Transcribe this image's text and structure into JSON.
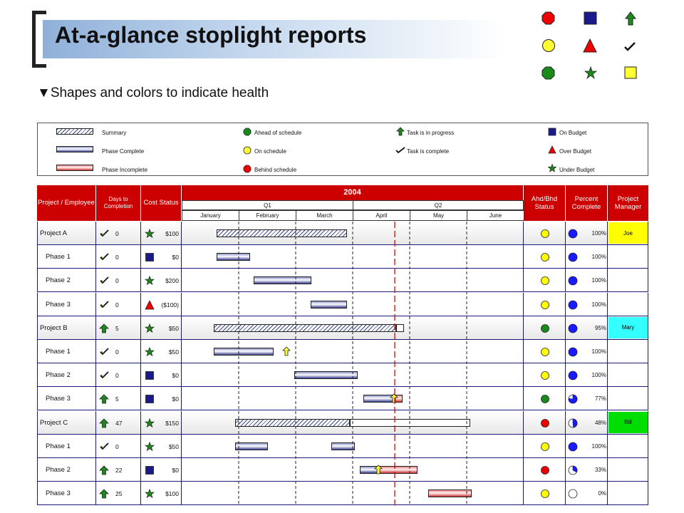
{
  "slide": {
    "title": "At-a-glance stoplight reports",
    "bullet": "Shapes and colors to indicate health",
    "bullet_marker": "▼"
  },
  "shape_grid": [
    [
      "red-octagon",
      "blue-square",
      "green-up-arrow"
    ],
    [
      "yellow-circle",
      "red-triangle",
      "black-checkmark"
    ],
    [
      "green-octagon",
      "green-star",
      "yellow-square"
    ]
  ],
  "legend": {
    "summary": "Summary",
    "phase_complete": "Phase Complete",
    "phase_incomplete": "Phase Incomplete",
    "ahead": "Ahead of schedule",
    "on_schedule": "On schedule",
    "behind": "Behind schedule",
    "task_in_progress": "Task is in progress",
    "task_complete": "Task is complete",
    "on_budget": "On Budget",
    "over_budget": "Over Budget",
    "under_budget": "Under Budget"
  },
  "headers": {
    "project": "Project / Employee",
    "days": "Days to Completion",
    "cost": "Cost Status",
    "year": "2004",
    "q1": "Q1",
    "q2": "Q2",
    "months": [
      "January",
      "February",
      "March",
      "April",
      "May",
      "June"
    ],
    "ahd": "Ahd/Bhd Status",
    "percent": "Percent Complete",
    "manager": "Project Manager"
  },
  "rows": [
    {
      "name": "Project A",
      "summary": true,
      "task_icon": "check",
      "days": "0",
      "cost_icon": "star",
      "cost": "$100",
      "status": "yellow",
      "percent": "100%",
      "pie": 1.0,
      "manager": "Joe",
      "mgr_color": "#ffff00",
      "bars": [
        {
          "type": "summary",
          "start": 0.0,
          "end": 0.425
        }
      ]
    },
    {
      "name": "Phase 1",
      "task_icon": "check",
      "days": "0",
      "cost_icon": "square",
      "cost": "$0",
      "status": "yellow",
      "percent": "100%",
      "pie": 1.0,
      "bars": [
        {
          "type": "complete",
          "start": 0.0,
          "end": 0.108
        }
      ]
    },
    {
      "name": "Phase 2",
      "task_icon": "check",
      "days": "0",
      "cost_icon": "star",
      "cost": "$200",
      "status": "yellow",
      "percent": "100%",
      "pie": 1.0,
      "bars": [
        {
          "type": "complete",
          "start": 0.12,
          "end": 0.308
        }
      ]
    },
    {
      "name": "Phase 3",
      "task_icon": "check",
      "days": "0",
      "cost_icon": "triangle",
      "cost": "($100)",
      "status": "yellow",
      "percent": "100%",
      "pie": 1.0,
      "bars": [
        {
          "type": "complete",
          "start": 0.307,
          "end": 0.425
        }
      ]
    },
    {
      "name": "Project B",
      "summary": true,
      "task_icon": "arrow",
      "days": "5",
      "cost_icon": "star",
      "cost": "$50",
      "status": "green",
      "percent": "95%",
      "pie": 1.0,
      "manager": "Mary",
      "mgr_color": "#33ffff",
      "bars": [
        {
          "type": "summary",
          "start": -0.01,
          "end": 0.585
        },
        {
          "type": "white",
          "start": 0.585,
          "end": 0.61
        }
      ]
    },
    {
      "name": "Phase 1",
      "task_icon": "check",
      "days": "0",
      "cost_icon": "star",
      "cost": "$50",
      "status": "yellow",
      "percent": "100%",
      "pie": 1.0,
      "bars": [
        {
          "type": "complete",
          "start": -0.01,
          "end": 0.185
        }
      ],
      "marker": 0.225
    },
    {
      "name": "Phase 2",
      "task_icon": "check",
      "days": "0",
      "cost_icon": "square",
      "cost": "$0",
      "status": "yellow",
      "percent": "100%",
      "pie": 1.0,
      "bars": [
        {
          "type": "complete",
          "start": 0.253,
          "end": 0.46
        }
      ]
    },
    {
      "name": "Phase 3",
      "task_icon": "arrow",
      "days": "5",
      "cost_icon": "square",
      "cost": "$0",
      "status": "green",
      "percent": "77%",
      "pie": 0.77,
      "bars": [
        {
          "type": "complete",
          "start": 0.477,
          "end": 0.575
        },
        {
          "type": "incomplete",
          "start": 0.575,
          "end": 0.606
        }
      ],
      "marker": 0.575
    },
    {
      "name": "Project C",
      "summary": true,
      "task_icon": "arrow",
      "days": "47",
      "cost_icon": "star",
      "cost": "$150",
      "status": "red",
      "percent": "48%",
      "pie": 0.48,
      "manager": "Bill",
      "mgr_color": "#00dd00",
      "bars": [
        {
          "type": "summary",
          "start": 0.06,
          "end": 0.433
        },
        {
          "type": "white",
          "start": 0.433,
          "end": 0.826
        }
      ]
    },
    {
      "name": "Phase 1",
      "task_icon": "check",
      "days": "0",
      "cost_icon": "star",
      "cost": "$50",
      "status": "yellow",
      "percent": "100%",
      "pie": 1.0,
      "bars": [
        {
          "type": "complete",
          "start": 0.06,
          "end": 0.168
        },
        {
          "type": "complete",
          "start": 0.373,
          "end": 0.45
        }
      ]
    },
    {
      "name": "Phase 2",
      "task_icon": "arrow",
      "days": "22",
      "cost_icon": "square",
      "cost": "$0",
      "status": "red",
      "percent": "33%",
      "pie": 0.33,
      "bars": [
        {
          "type": "complete",
          "start": 0.466,
          "end": 0.53
        },
        {
          "type": "incomplete",
          "start": 0.53,
          "end": 0.654
        }
      ],
      "marker": 0.524
    },
    {
      "name": "Phase 3",
      "task_icon": "arrow",
      "days": "25",
      "cost_icon": "star",
      "cost": "$100",
      "status": "yellow",
      "percent": "0%",
      "pie": 0.0,
      "bars": [
        {
          "type": "incomplete",
          "start": 0.688,
          "end": 0.831
        }
      ]
    }
  ],
  "colors": {
    "header_red": "#cc0000",
    "status_yellow": "#ffff00",
    "status_green": "#1a8a1a",
    "status_red": "#ee0000",
    "pie_blue": "#1a1aff",
    "dark_blue": "#1a1a7a"
  }
}
